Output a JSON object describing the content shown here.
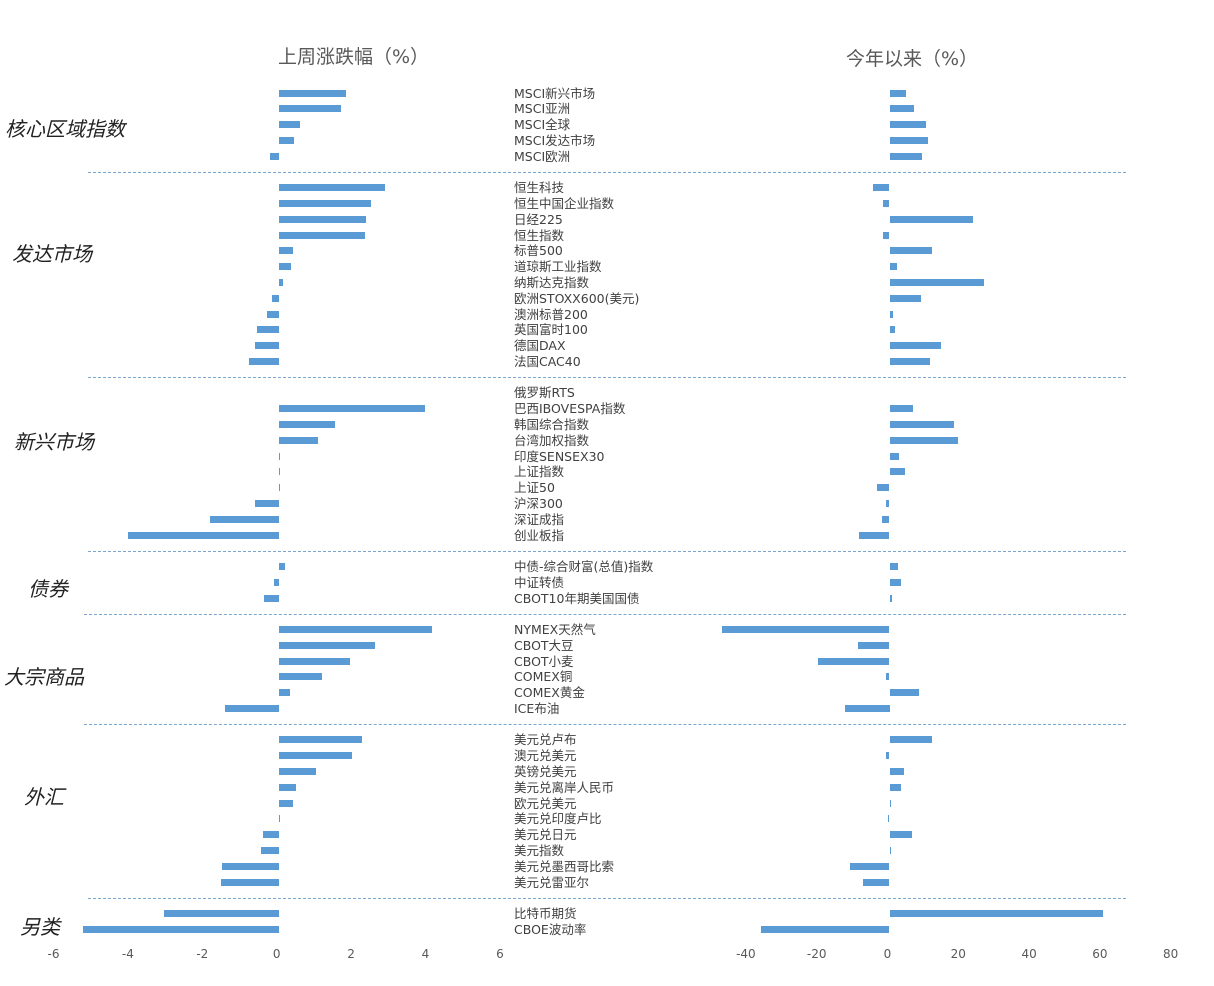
{
  "chart_data": {
    "type": "bar",
    "orientation": "horizontal",
    "titles": {
      "left": "上周涨跌幅（%）",
      "right": "今年以来（%）"
    },
    "axes": {
      "left": {
        "ticks": [
          -6,
          -4,
          -2,
          0,
          2,
          4,
          6
        ],
        "range": [
          -6,
          6
        ]
      },
      "right": {
        "ticks": [
          -40,
          -20,
          0,
          20,
          40,
          60,
          80
        ],
        "range": [
          -45,
          80
        ]
      }
    },
    "series_names": [
      "上周涨跌幅（%）",
      "今年以来（%）"
    ],
    "groups": [
      {
        "name": "核心区域指数",
        "items": [
          {
            "label": "MSCI新兴市场",
            "week": 1.82,
            "ytd": 4.8
          },
          {
            "label": "MSCI亚洲",
            "week": 1.68,
            "ytd": 6.8
          },
          {
            "label": "MSCI全球",
            "week": 0.57,
            "ytd": 10.3
          },
          {
            "label": "MSCI发达市场",
            "week": 0.42,
            "ytd": 10.9
          },
          {
            "label": "MSCI欧洲",
            "week": -0.23,
            "ytd": 9.2
          }
        ]
      },
      {
        "name": "发达市场",
        "items": [
          {
            "label": "恒生科技",
            "week": 2.85,
            "ytd": -4.7
          },
          {
            "label": "恒生中国企业指数",
            "week": 2.47,
            "ytd": -1.7
          },
          {
            "label": "日经225",
            "week": 2.34,
            "ytd": 23.6
          },
          {
            "label": "恒生指数",
            "week": 2.31,
            "ytd": -1.9
          },
          {
            "label": "标普500",
            "week": 0.38,
            "ytd": 11.9
          },
          {
            "label": "道琼斯工业指数",
            "week": 0.32,
            "ytd": 2.1
          },
          {
            "label": "纳斯达克指数",
            "week": 0.12,
            "ytd": 26.6
          },
          {
            "label": "欧洲STOXX600(美元)",
            "week": -0.19,
            "ytd": 9.0
          },
          {
            "label": "澳洲标普200",
            "week": -0.32,
            "ytd": 1.1
          },
          {
            "label": "英国富时100",
            "week": -0.59,
            "ytd": 1.5
          },
          {
            "label": "德国DAX",
            "week": -0.64,
            "ytd": 14.5
          },
          {
            "label": "法国CAC40",
            "week": -0.8,
            "ytd": 11.4
          }
        ]
      },
      {
        "name": "新兴市场",
        "items": [
          {
            "label": "俄罗斯RTS",
            "week": null,
            "ytd": null
          },
          {
            "label": "巴西IBOVESPA指数",
            "week": 3.93,
            "ytd": 6.5
          },
          {
            "label": "韩国综合指数",
            "week": 1.52,
            "ytd": 18.1
          },
          {
            "label": "台湾加权指数",
            "week": 1.06,
            "ytd": 19.3
          },
          {
            "label": "印度SENSEX30",
            "week": 0.03,
            "ytd": 2.8
          },
          {
            "label": "上证指数",
            "week": 0.02,
            "ytd": 4.5
          },
          {
            "label": "上证50",
            "week": 0.0,
            "ytd": -3.4
          },
          {
            "label": "沪深300",
            "week": -0.65,
            "ytd": -0.85
          },
          {
            "label": "深证成指",
            "week": -1.86,
            "ytd": -2.0
          },
          {
            "label": "创业板指",
            "week": -4.04,
            "ytd": -8.7
          }
        ]
      },
      {
        "name": "债券",
        "items": [
          {
            "label": "中债-综合财富(总值)指数",
            "week": 0.17,
            "ytd": 2.3
          },
          {
            "label": "中证转债",
            "week": -0.13,
            "ytd": 3.2
          },
          {
            "label": "CBOT10年期美国国债",
            "week": -0.39,
            "ytd": 0.7
          }
        ]
      },
      {
        "name": "大宗商品",
        "items": [
          {
            "label": "NYMEX天然气",
            "week": 4.13,
            "ytd": -47.3
          },
          {
            "label": "CBOT大豆",
            "week": 2.6,
            "ytd": -8.8
          },
          {
            "label": "CBOT小麦",
            "week": 1.93,
            "ytd": -20.1
          },
          {
            "label": "COMEX铜",
            "week": 1.16,
            "ytd": -0.9
          },
          {
            "label": "COMEX黄金",
            "week": 0.3,
            "ytd": 8.2
          },
          {
            "label": "ICE布油",
            "week": -1.44,
            "ytd": -12.5
          }
        ]
      },
      {
        "name": "外汇",
        "items": [
          {
            "label": "美元兑卢布",
            "week": 2.25,
            "ytd": 12.1
          },
          {
            "label": "澳元兑美元",
            "week": 1.96,
            "ytd": -1.0
          },
          {
            "label": "英镑兑美元",
            "week": 0.99,
            "ytd": 4.0
          },
          {
            "label": "美元兑离岸人民币",
            "week": 0.47,
            "ytd": 3.2
          },
          {
            "label": "欧元兑美元",
            "week": 0.38,
            "ytd": 0.5
          },
          {
            "label": "美元兑印度卢比",
            "week": 0.01,
            "ytd": -0.3
          },
          {
            "label": "美元兑日元",
            "week": -0.42,
            "ytd": 6.3
          },
          {
            "label": "美元指数",
            "week": -0.48,
            "ytd": 0.1
          },
          {
            "label": "美元兑墨西哥比索",
            "week": -1.52,
            "ytd": -11.1
          },
          {
            "label": "美元兑雷亚尔",
            "week": -1.54,
            "ytd": -7.5
          }
        ]
      },
      {
        "name": "另类",
        "items": [
          {
            "label": "比特币期货",
            "week": -3.07,
            "ytd": 60.4
          },
          {
            "label": "CBOE波动率",
            "week": -5.26,
            "ytd": -36.3
          }
        ]
      }
    ],
    "colors": {
      "bar": "#5b9bd5",
      "separator": "#7aa6cf"
    },
    "grid": false,
    "legend": "none"
  }
}
